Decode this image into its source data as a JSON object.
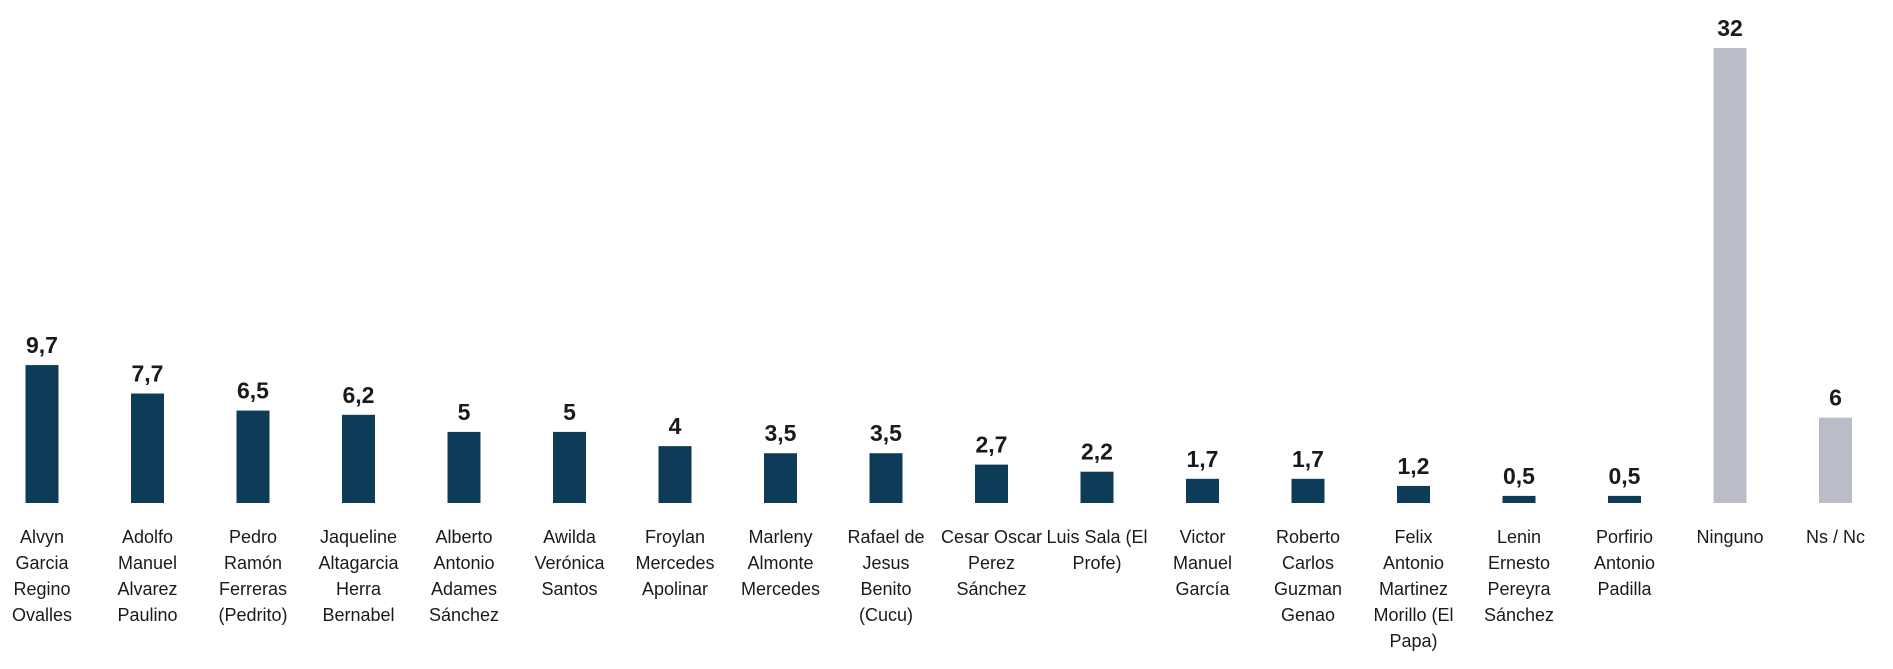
{
  "chart_data": {
    "type": "bar",
    "categories": [
      "Alvyn Garcia Regino Ovalles",
      "Adolfo Manuel Alvarez Paulino",
      "Pedro Ramón Ferreras (Pedrito)",
      "Jaqueline Altagarcia Herra Bernabel",
      "Alberto Antonio Adames Sánchez",
      "Awilda Verónica Santos",
      "Froylan Mercedes Apolinar",
      "Marleny Almonte Mercedes",
      "Rafael de Jesus Benito (Cucu)",
      "Cesar Oscar Perez Sánchez",
      "Luis Sala (El Profe)",
      "Victor Manuel García",
      "Roberto Carlos Guzman Genao",
      "Felix Antonio Martinez Morillo (El Papa)",
      "Lenin Ernesto Pereyra Sánchez",
      "Porfirio Antonio Padilla",
      "Ninguno",
      "Ns / Nc"
    ],
    "values": [
      9.7,
      7.7,
      6.5,
      6.2,
      5,
      5,
      4,
      3.5,
      3.5,
      2.7,
      2.2,
      1.7,
      1.7,
      1.2,
      0.5,
      0.5,
      32,
      6
    ],
    "value_labels": [
      "9,7",
      "7,7",
      "6,5",
      "6,2",
      "5",
      "5",
      "4",
      "3,5",
      "3,5",
      "2,7",
      "2,2",
      "1,7",
      "1,7",
      "1,2",
      "0,5",
      "0,5",
      "32",
      "6"
    ],
    "colors": [
      "#0d3b58",
      "#0d3b58",
      "#0d3b58",
      "#0d3b58",
      "#0d3b58",
      "#0d3b58",
      "#0d3b58",
      "#0d3b58",
      "#0d3b58",
      "#0d3b58",
      "#0d3b58",
      "#0d3b58",
      "#0d3b58",
      "#0d3b58",
      "#0d3b58",
      "#0d3b58",
      "#babdc8",
      "#babdc8"
    ]
  }
}
